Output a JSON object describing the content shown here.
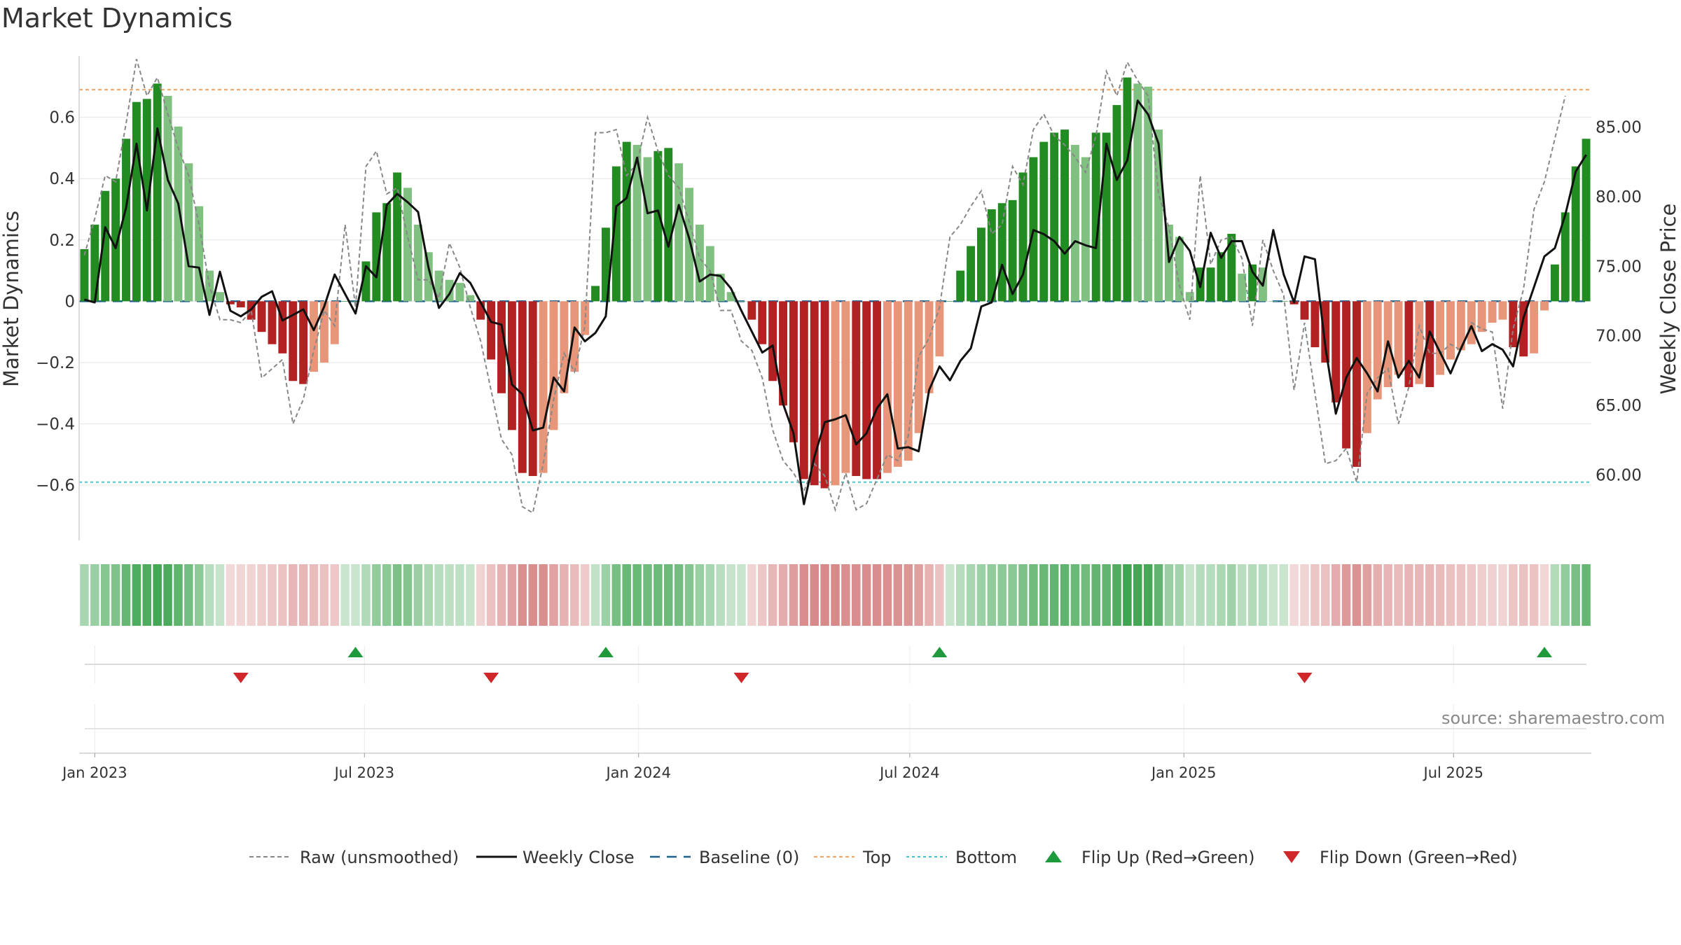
{
  "title": "Market Dynamics",
  "source": "source: sharemaestro.com",
  "chart_data": {
    "type": "bar",
    "ylabel_left": "Market Dynamics",
    "ylabel_right": "Weekly Close Price",
    "ylim_left": [
      -0.78,
      0.8
    ],
    "ylim_right": [
      55.3,
      90.1
    ],
    "yticks_left": [
      0.6,
      0.4,
      0.2,
      0,
      -0.2,
      -0.4,
      -0.6
    ],
    "yticks_left_labels": [
      "0.6",
      "0.4",
      "0.2",
      "0",
      "−0.2",
      "−0.4",
      "−0.6"
    ],
    "yticks_right": [
      85,
      80,
      75,
      70,
      65,
      60
    ],
    "yticks_right_labels": [
      "85.00",
      "80.00",
      "75.00",
      "70.00",
      "65.00",
      "60.00"
    ],
    "x_start": "2022-12-25",
    "x_interval_days": 7,
    "xticks": [
      {
        "label": "Jan 2023",
        "date": "2023-01-01"
      },
      {
        "label": "Jul 2023",
        "date": "2023-07-01"
      },
      {
        "label": "Jan 2024",
        "date": "2024-01-01"
      },
      {
        "label": "Jul 2024",
        "date": "2024-07-01"
      },
      {
        "label": "Jan 2025",
        "date": "2025-01-01"
      },
      {
        "label": "Jul 2025",
        "date": "2025-07-01"
      }
    ],
    "top_level": 0.69,
    "bottom_level": -0.59,
    "baseline": 0,
    "dynamics": [
      0.17,
      0.25,
      0.36,
      0.4,
      0.53,
      0.65,
      0.66,
      0.71,
      0.67,
      0.57,
      0.45,
      0.31,
      0.1,
      0.03,
      -0.01,
      -0.02,
      -0.06,
      -0.1,
      -0.14,
      -0.17,
      -0.26,
      -0.27,
      -0.23,
      -0.2,
      -0.14,
      0.0,
      0.0,
      0.13,
      0.29,
      0.32,
      0.42,
      0.37,
      0.25,
      0.16,
      0.1,
      0.07,
      0.06,
      0.02,
      -0.06,
      -0.19,
      -0.3,
      -0.42,
      -0.56,
      -0.57,
      -0.56,
      -0.42,
      -0.3,
      -0.23,
      -0.11,
      0.05,
      0.24,
      0.44,
      0.52,
      0.51,
      0.47,
      0.49,
      0.5,
      0.45,
      0.37,
      0.25,
      0.18,
      0.09,
      0.03,
      0.0,
      -0.06,
      -0.14,
      -0.26,
      -0.34,
      -0.46,
      -0.58,
      -0.6,
      -0.61,
      -0.6,
      -0.56,
      -0.57,
      -0.58,
      -0.58,
      -0.56,
      -0.54,
      -0.52,
      -0.43,
      -0.3,
      -0.18,
      0.0,
      0.1,
      0.18,
      0.24,
      0.3,
      0.32,
      0.33,
      0.42,
      0.47,
      0.52,
      0.55,
      0.56,
      0.51,
      0.47,
      0.55,
      0.55,
      0.64,
      0.73,
      0.71,
      0.7,
      0.56,
      0.25,
      0.21,
      0.03,
      0.11,
      0.11,
      0.16,
      0.22,
      0.09,
      0.12,
      0.11,
      0.0,
      0.0,
      -0.01,
      -0.06,
      -0.15,
      -0.2,
      -0.33,
      -0.48,
      -0.54,
      -0.43,
      -0.32,
      -0.28,
      -0.24,
      -0.28,
      -0.27,
      -0.28,
      -0.24,
      -0.19,
      -0.16,
      -0.14,
      -0.1,
      -0.07,
      -0.06,
      -0.15,
      -0.18,
      -0.17,
      -0.03,
      0.12,
      0.29,
      0.44,
      0.53
    ],
    "weekly_close": [
      72.6,
      72.4,
      77.8,
      76.3,
      79.2,
      83.8,
      79.0,
      84.9,
      81.2,
      79.5,
      75.0,
      74.9,
      71.5,
      74.6,
      71.8,
      71.4,
      71.9,
      72.8,
      73.2,
      71.1,
      71.5,
      71.9,
      70.4,
      72.1,
      74.4,
      73.0,
      71.6,
      75.0,
      74.2,
      79.4,
      80.2,
      79.6,
      78.9,
      74.9,
      72.0,
      73.0,
      74.5,
      73.8,
      72.4,
      71.0,
      70.8,
      66.5,
      65.8,
      63.2,
      63.4,
      67.0,
      66.0,
      70.6,
      69.6,
      70.2,
      71.4,
      79.3,
      79.9,
      82.8,
      78.8,
      79.0,
      76.4,
      79.4,
      77.0,
      73.9,
      74.4,
      74.3,
      73.4,
      71.8,
      70.3,
      68.8,
      69.3,
      65.1,
      63.0,
      57.9,
      61.3,
      63.8,
      64.0,
      64.3,
      62.2,
      63.0,
      64.8,
      65.8,
      61.9,
      62.0,
      61.7,
      66.1,
      67.8,
      66.8,
      68.2,
      69.1,
      72.1,
      72.4,
      75.1,
      73.0,
      74.4,
      77.6,
      77.3,
      76.8,
      75.9,
      76.8,
      76.5,
      76.3,
      83.8,
      81.2,
      82.6,
      86.9,
      85.9,
      83.8,
      75.3,
      77.1,
      76.1,
      73.5,
      77.4,
      75.6,
      76.8,
      76.8,
      74.6,
      73.6,
      77.6,
      74.4,
      72.4,
      75.7,
      75.5,
      69.2,
      64.4,
      67.0,
      68.4,
      67.3,
      66.0,
      69.6,
      67.0,
      68.2,
      67.0,
      70.3,
      68.8,
      67.3,
      69.1,
      70.7,
      68.9,
      69.4,
      69.0,
      67.8,
      71.3,
      73.5,
      75.7,
      76.3,
      78.7,
      81.8,
      83.0
    ],
    "raw": [
      0.15,
      0.27,
      0.41,
      0.39,
      0.58,
      0.79,
      0.67,
      0.73,
      0.61,
      0.5,
      0.41,
      0.25,
      0.05,
      -0.06,
      -0.06,
      -0.07,
      -0.03,
      -0.25,
      -0.22,
      -0.19,
      -0.4,
      -0.32,
      -0.16,
      -0.03,
      -0.08,
      0.25,
      -0.02,
      0.44,
      0.49,
      0.35,
      0.37,
      0.21,
      0.07,
      0.07,
      0.01,
      0.19,
      0.11,
      -0.02,
      -0.13,
      -0.29,
      -0.45,
      -0.5,
      -0.67,
      -0.69,
      -0.53,
      -0.32,
      -0.17,
      -0.23,
      -0.08,
      0.55,
      0.55,
      0.56,
      0.41,
      0.45,
      0.6,
      0.49,
      0.41,
      0.37,
      0.26,
      0.14,
      0.1,
      -0.03,
      -0.03,
      -0.13,
      -0.16,
      -0.25,
      -0.42,
      -0.52,
      -0.56,
      -0.62,
      -0.53,
      -0.57,
      -0.68,
      -0.56,
      -0.68,
      -0.66,
      -0.58,
      -0.5,
      -0.52,
      -0.44,
      -0.18,
      -0.12,
      -0.02,
      0.21,
      0.25,
      0.31,
      0.36,
      0.22,
      0.25,
      0.44,
      0.38,
      0.56,
      0.61,
      0.54,
      0.51,
      0.47,
      0.42,
      0.54,
      0.75,
      0.67,
      0.78,
      0.72,
      0.67,
      0.35,
      0.24,
      0.05,
      -0.06,
      0.41,
      0.12,
      0.2,
      0.21,
      0.14,
      -0.08,
      0.2,
      0.1,
      0.02,
      -0.29,
      -0.07,
      -0.3,
      -0.53,
      -0.52,
      -0.48,
      -0.59,
      -0.3,
      -0.25,
      -0.22,
      -0.4,
      -0.28,
      -0.08,
      -0.17,
      -0.17,
      -0.14,
      -0.16,
      -0.07,
      -0.09,
      -0.1,
      -0.35,
      -0.09,
      0.04,
      0.3,
      0.39,
      0.53,
      0.67
    ],
    "flips_up": [
      "2023-06-25",
      "2023-12-10",
      "2024-07-21",
      "2025-08-31"
    ],
    "flips_down": [
      "2023-04-09",
      "2023-09-24",
      "2024-03-10",
      "2025-03-23"
    ],
    "legend": [
      {
        "label": "Raw (unsmoothed)",
        "style": "dashed-gray"
      },
      {
        "label": "Weekly Close",
        "style": "solid-black"
      },
      {
        "label": "Baseline (0)",
        "style": "dashed-blue"
      },
      {
        "label": "Top",
        "style": "dotted-orange"
      },
      {
        "label": "Bottom",
        "style": "dotted-cyan"
      },
      {
        "label": "Flip Up (Red→Green)",
        "style": "triangle-up-green"
      },
      {
        "label": "Flip Down (Green→Red)",
        "style": "triangle-down-red"
      }
    ],
    "legend_position": "bottom-center",
    "colors": {
      "strong_green": "#228b22",
      "light_green": "#80c080",
      "strong_red": "#b22222",
      "light_red": "#e8967a",
      "top_line": "#f4a460",
      "bottom_line": "#40c8d0",
      "baseline": "#1f5f8b",
      "raw_line": "#888888",
      "close_line": "#111111",
      "flip_up": "#1e9a3c",
      "flip_down": "#d0282a"
    }
  }
}
